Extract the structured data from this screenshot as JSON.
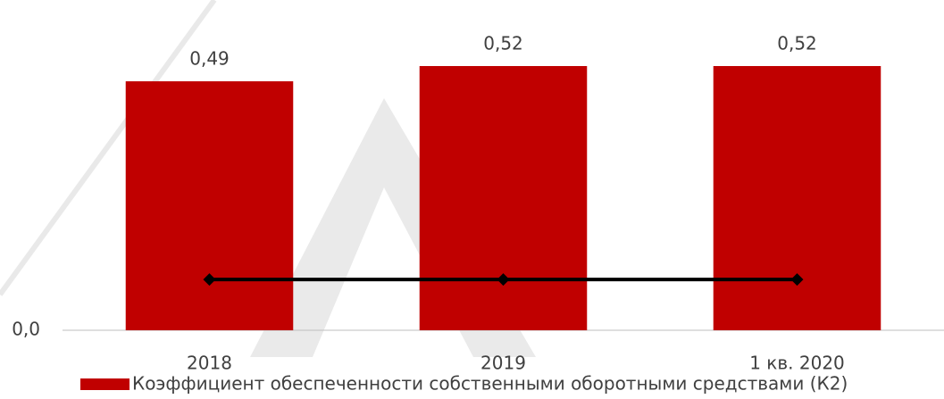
{
  "chart_data": {
    "type": "bar",
    "categories": [
      "2018",
      "2019",
      "1 кв. 2020"
    ],
    "series": [
      {
        "name": "Коэффициент обеспеченности собственными оборотными средствами (К2)",
        "color": "#c00000",
        "values": [
          0.49,
          0.52,
          0.52
        ],
        "value_labels": [
          "0,49",
          "0,52",
          "0,52"
        ]
      },
      {
        "type": "line",
        "color": "#000000",
        "values": [
          0.1,
          0.1,
          0.1
        ]
      }
    ],
    "ylim": [
      0,
      0.65
    ],
    "yticks": [
      {
        "value": 0,
        "label": "0,0"
      }
    ],
    "grid": false
  }
}
